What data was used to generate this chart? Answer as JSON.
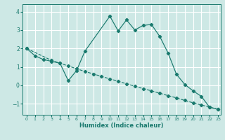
{
  "xlabel": "Humidex (Indice chaleur)",
  "background_color": "#cde8e5",
  "grid_color": "#ffffff",
  "line_color": "#1a7a6e",
  "x_min": -0.5,
  "x_max": 23.3,
  "y_min": -1.6,
  "y_max": 4.4,
  "yticks": [
    -1,
    0,
    1,
    2,
    3,
    4
  ],
  "xticks": [
    0,
    1,
    2,
    3,
    4,
    5,
    6,
    7,
    8,
    9,
    10,
    11,
    12,
    13,
    14,
    15,
    16,
    17,
    18,
    19,
    20,
    21,
    22,
    23
  ],
  "line1_x": [
    0,
    1,
    2,
    3,
    4,
    5,
    6,
    7,
    10,
    11,
    12,
    13,
    14,
    15,
    16,
    17,
    18,
    19,
    20,
    21,
    22,
    23
  ],
  "line1_y": [
    2.0,
    1.6,
    1.4,
    1.3,
    1.2,
    0.25,
    0.8,
    1.85,
    3.75,
    2.95,
    3.55,
    3.0,
    3.25,
    3.3,
    2.65,
    1.75,
    0.6,
    0.05,
    -0.3,
    -0.6,
    -1.2,
    -1.3
  ],
  "line2_x": [
    0,
    3,
    4,
    5,
    6,
    7,
    8,
    9,
    10,
    11,
    12,
    13,
    14,
    15,
    16,
    17,
    18,
    19,
    20,
    21,
    22,
    23
  ],
  "line2_y": [
    2.0,
    1.35,
    1.2,
    1.05,
    0.9,
    0.75,
    0.62,
    0.48,
    0.35,
    0.22,
    0.08,
    -0.05,
    -0.18,
    -0.3,
    -0.43,
    -0.56,
    -0.68,
    -0.82,
    -0.95,
    -1.07,
    -1.18,
    -1.3
  ]
}
